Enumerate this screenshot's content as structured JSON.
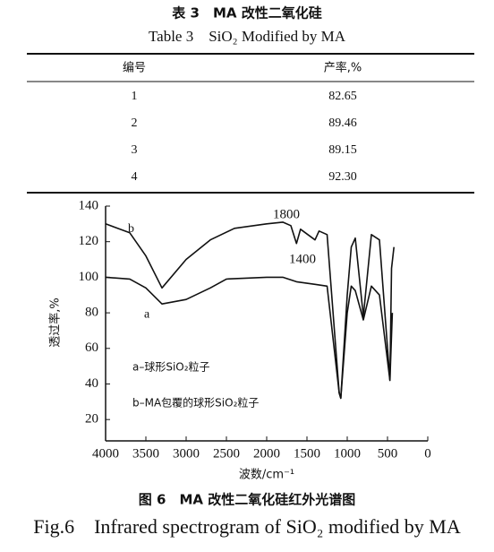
{
  "table": {
    "title_cn": "表 3　MA 改性二氧化硅",
    "title_en": "Table 3　SiO₂ Modified by MA",
    "headers": [
      "编号",
      "产率,%"
    ],
    "rows": [
      [
        "1",
        "82.65"
      ],
      [
        "2",
        "89.46"
      ],
      [
        "3",
        "89.15"
      ],
      [
        "4",
        "92.30"
      ]
    ]
  },
  "chart_data": {
    "type": "line",
    "xlabel": "波数/cm⁻¹",
    "ylabel": "透过率,%",
    "xlim": [
      4000,
      0
    ],
    "ylim": [
      8,
      140
    ],
    "xticks": [
      4000,
      3500,
      3000,
      2500,
      2000,
      1500,
      1000,
      500,
      0
    ],
    "yticks": [
      20,
      40,
      60,
      80,
      100,
      120,
      140
    ],
    "series": [
      {
        "name": "a",
        "color": "#111111",
        "x": [
          4000,
          3700,
          3500,
          3300,
          3000,
          2700,
          2500,
          2000,
          1800,
          1630,
          1400,
          1250,
          1100,
          1080,
          1000,
          950,
          900,
          800,
          700,
          600,
          470,
          440
        ],
        "values": [
          100,
          99,
          94,
          85,
          87.5,
          94,
          99,
          100,
          100,
          97.5,
          96,
          95,
          35,
          32,
          80,
          95,
          92.5,
          76,
          95,
          90,
          42,
          80
        ]
      },
      {
        "name": "b",
        "color": "#111111",
        "x": [
          4000,
          3700,
          3500,
          3300,
          3000,
          2700,
          2400,
          2000,
          1800,
          1700,
          1630,
          1580,
          1400,
          1350,
          1250,
          1100,
          1080,
          1000,
          950,
          900,
          800,
          700,
          600,
          470,
          450,
          420
        ],
        "values": [
          130,
          125,
          112,
          94,
          110,
          121,
          127.5,
          130,
          131,
          129,
          119,
          127,
          121,
          126,
          124,
          35,
          32,
          90,
          117,
          122,
          78,
          124,
          121,
          42,
          105,
          117
        ]
      }
    ],
    "annotations": [
      "1800",
      "1400",
      "a–球形SiO₂粒子",
      "b–MA包覆的球形SiO₂粒子"
    ]
  },
  "figure_caption": {
    "cn": "图 6　MA 改性二氧化硅红外光谱图",
    "en": "Fig.6　Infrared spectrogram of SiO₂ modified by MA"
  }
}
